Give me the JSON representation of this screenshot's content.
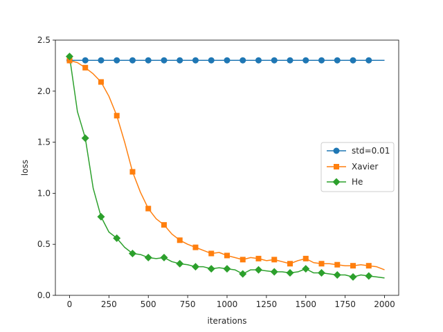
{
  "chart_data": {
    "type": "line",
    "title": "",
    "xlabel": "iterations",
    "ylabel": "loss",
    "xlim": [
      -90,
      2090
    ],
    "ylim": [
      0,
      2.5
    ],
    "xticks": [
      0,
      250,
      500,
      750,
      1000,
      1250,
      1500,
      1750,
      2000
    ],
    "yticks": [
      0.0,
      0.5,
      1.0,
      1.5,
      2.0,
      2.5
    ],
    "xtick_labels": [
      "0",
      "250",
      "500",
      "750",
      "1000",
      "1250",
      "1500",
      "1750",
      "2000"
    ],
    "ytick_labels": [
      "0.0",
      "0.5",
      "1.0",
      "1.5",
      "2.0",
      "2.5"
    ],
    "grid": false,
    "legend_position": "center-right",
    "series": [
      {
        "name": "std=0.01",
        "color": "#1f77b4",
        "marker": "circle",
        "x": [
          0,
          100,
          200,
          300,
          400,
          500,
          600,
          700,
          800,
          900,
          1000,
          1100,
          1200,
          1300,
          1400,
          1500,
          1600,
          1700,
          1800,
          1900,
          2000
        ],
        "values": [
          2.302,
          2.302,
          2.302,
          2.302,
          2.302,
          2.302,
          2.302,
          2.302,
          2.302,
          2.302,
          2.302,
          2.302,
          2.302,
          2.302,
          2.302,
          2.302,
          2.302,
          2.302,
          2.302,
          2.302,
          2.302
        ]
      },
      {
        "name": "Xavier",
        "color": "#ff7f0e",
        "marker": "square",
        "x": [
          0,
          50,
          100,
          150,
          200,
          250,
          300,
          350,
          400,
          450,
          500,
          550,
          600,
          650,
          700,
          750,
          800,
          850,
          900,
          950,
          1000,
          1050,
          1100,
          1150,
          1200,
          1250,
          1300,
          1350,
          1400,
          1450,
          1500,
          1550,
          1600,
          1650,
          1700,
          1750,
          1800,
          1850,
          1900,
          1950,
          2000
        ],
        "values": [
          2.3,
          2.28,
          2.23,
          2.17,
          2.09,
          1.95,
          1.76,
          1.5,
          1.21,
          1.01,
          0.85,
          0.75,
          0.69,
          0.6,
          0.54,
          0.5,
          0.47,
          0.44,
          0.41,
          0.42,
          0.39,
          0.37,
          0.35,
          0.37,
          0.36,
          0.34,
          0.35,
          0.33,
          0.31,
          0.34,
          0.36,
          0.32,
          0.31,
          0.31,
          0.3,
          0.29,
          0.29,
          0.3,
          0.29,
          0.28,
          0.25
        ]
      },
      {
        "name": "He",
        "color": "#2ca02c",
        "marker": "diamond",
        "x": [
          0,
          50,
          100,
          150,
          200,
          250,
          300,
          350,
          400,
          450,
          500,
          550,
          600,
          650,
          700,
          750,
          800,
          850,
          900,
          950,
          1000,
          1050,
          1100,
          1150,
          1200,
          1250,
          1300,
          1350,
          1400,
          1450,
          1500,
          1550,
          1600,
          1650,
          1700,
          1750,
          1800,
          1850,
          1900,
          1950,
          2000
        ],
        "values": [
          2.34,
          1.8,
          1.54,
          1.05,
          0.77,
          0.62,
          0.56,
          0.47,
          0.41,
          0.4,
          0.37,
          0.36,
          0.37,
          0.33,
          0.31,
          0.3,
          0.28,
          0.28,
          0.26,
          0.27,
          0.26,
          0.25,
          0.21,
          0.25,
          0.25,
          0.24,
          0.23,
          0.23,
          0.22,
          0.23,
          0.26,
          0.22,
          0.22,
          0.21,
          0.2,
          0.2,
          0.18,
          0.2,
          0.19,
          0.18,
          0.17
        ]
      }
    ],
    "marker_every": 100
  }
}
